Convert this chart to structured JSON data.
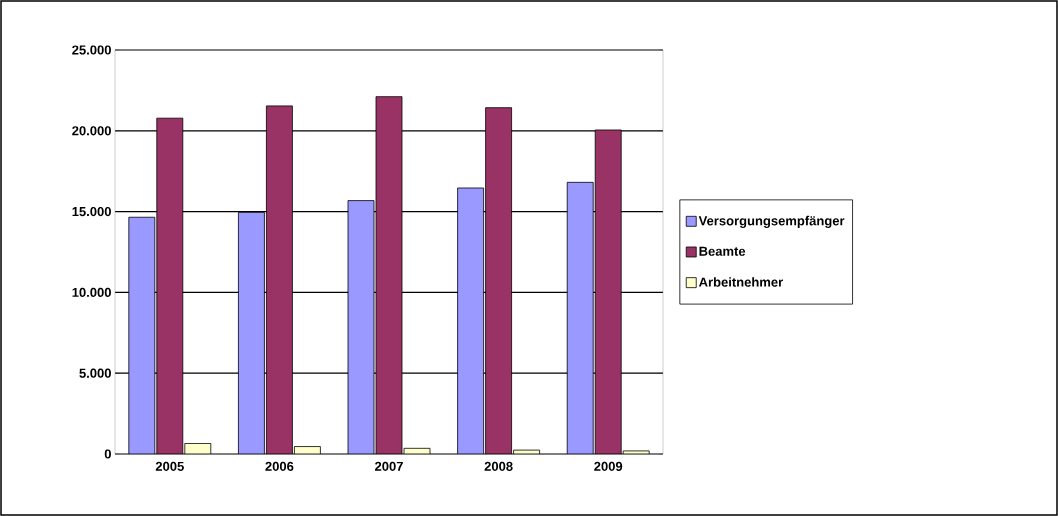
{
  "chart_data": {
    "type": "bar",
    "categories": [
      "2005",
      "2006",
      "2007",
      "2008",
      "2009"
    ],
    "series": [
      {
        "name": "Versorgungsempfänger",
        "color": "#9999ff",
        "values": [
          14650,
          14950,
          15680,
          16460,
          16810
        ]
      },
      {
        "name": "Beamte",
        "color": "#993366",
        "values": [
          20780,
          21540,
          22110,
          21430,
          20050
        ]
      },
      {
        "name": "Arbeitnehmer",
        "color": "#ffffcc",
        "values": [
          650,
          460,
          350,
          240,
          190
        ]
      }
    ],
    "ylim": [
      0,
      25000
    ],
    "yticks": [
      {
        "value": 0,
        "label": "0"
      },
      {
        "value": 5000,
        "label": "5.000"
      },
      {
        "value": 10000,
        "label": "10.000"
      },
      {
        "value": 15000,
        "label": "15.000"
      },
      {
        "value": 20000,
        "label": "20.000"
      },
      {
        "value": 25000,
        "label": "25.000"
      }
    ],
    "grid": "y",
    "legend": "right"
  }
}
